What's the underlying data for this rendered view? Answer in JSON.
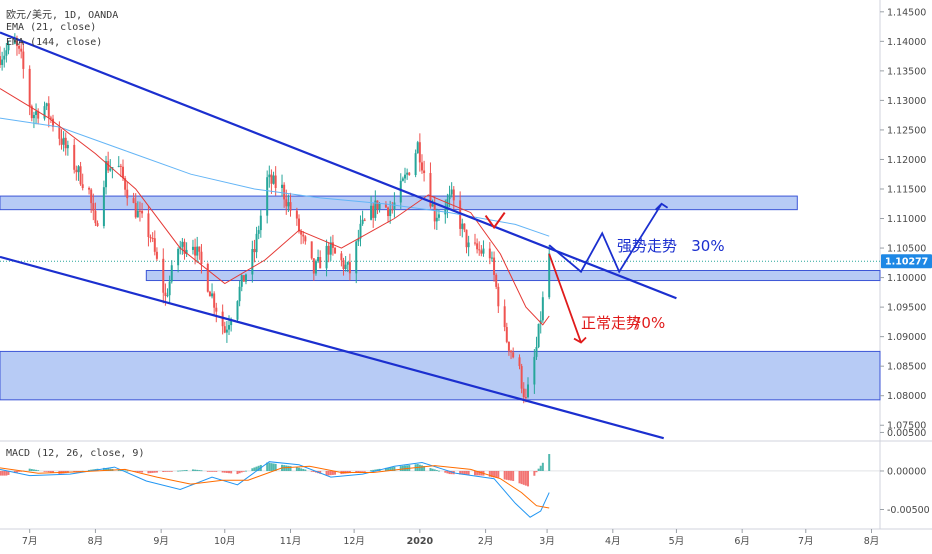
{
  "chart_data": {
    "type": "candlestick",
    "title": "欧元/美元, 1D, OANDA",
    "indicators": [
      "EMA (21, close)",
      "EMA (144, close)"
    ],
    "macd_label": "MACD (12, 26, close, 9)",
    "last_price": "1.10277",
    "colors": {
      "up": "#26a69a",
      "down": "#ef5350",
      "ema21": "#e53935",
      "ema144": "#64b5f6",
      "channel": "#1b2fcf",
      "zone_fill": "#9fbaf2",
      "zone_stroke": "#3c55d6",
      "macd_line": "#2196f3",
      "signal_line": "#ff6d00",
      "price_tag": "#1e88e5"
    },
    "price_axis": {
      "min": 1.0725,
      "max": 1.147,
      "ticks": [
        "1.14500",
        "1.14000",
        "1.13500",
        "1.13000",
        "1.12500",
        "1.12000",
        "1.11500",
        "1.11000",
        "1.10500",
        "1.10000",
        "1.09500",
        "1.09000",
        "1.08500",
        "1.08000",
        "1.07500"
      ]
    },
    "macd_axis": {
      "min": -0.0074,
      "max": 0.0035,
      "ticks": [
        "0.00500",
        "0.00000",
        "-0.00500"
      ]
    },
    "time_axis": {
      "start": "2019-06-17",
      "end": "2020-08-05",
      "ticks": [
        {
          "date": "2019-07-01",
          "label": "7月"
        },
        {
          "date": "2019-08-01",
          "label": "8月"
        },
        {
          "date": "2019-09-01",
          "label": "9月"
        },
        {
          "date": "2019-10-01",
          "label": "10月"
        },
        {
          "date": "2019-11-01",
          "label": "11月"
        },
        {
          "date": "2019-12-01",
          "label": "12月"
        },
        {
          "date": "2020-01-01",
          "label": "2020"
        },
        {
          "date": "2020-02-01",
          "label": "2月"
        },
        {
          "date": "2020-03-01",
          "label": "3月"
        },
        {
          "date": "2020-04-01",
          "label": "4月"
        },
        {
          "date": "2020-05-01",
          "label": "5月"
        },
        {
          "date": "2020-06-01",
          "label": "6月"
        },
        {
          "date": "2020-07-01",
          "label": "7月"
        },
        {
          "date": "2020-08-01",
          "label": "8月"
        }
      ]
    },
    "price_path": [
      [
        "2019-06-17",
        1.1375
      ],
      [
        "2019-06-24",
        1.1395
      ],
      [
        "2019-06-27",
        1.137
      ],
      [
        "2019-07-02",
        1.1275
      ],
      [
        "2019-07-08",
        1.129
      ],
      [
        "2019-07-15",
        1.124
      ],
      [
        "2019-07-22",
        1.119
      ],
      [
        "2019-07-29",
        1.1145
      ],
      [
        "2019-08-01",
        1.108
      ],
      [
        "2019-08-06",
        1.119
      ],
      [
        "2019-08-12",
        1.1185
      ],
      [
        "2019-08-19",
        1.112
      ],
      [
        "2019-08-27",
        1.107
      ],
      [
        "2019-09-03",
        1.0965
      ],
      [
        "2019-09-09",
        1.105
      ],
      [
        "2019-09-16",
        1.106
      ],
      [
        "2019-09-23",
        1.099
      ],
      [
        "2019-10-01",
        1.091
      ],
      [
        "2019-10-08",
        1.098
      ],
      [
        "2019-10-15",
        1.1045
      ],
      [
        "2019-10-21",
        1.1165
      ],
      [
        "2019-10-28",
        1.115
      ],
      [
        "2019-11-05",
        1.108
      ],
      [
        "2019-11-12",
        1.101
      ],
      [
        "2019-11-19",
        1.105
      ],
      [
        "2019-11-29",
        1.101
      ],
      [
        "2019-12-04",
        1.108
      ],
      [
        "2019-12-12",
        1.1125
      ],
      [
        "2019-12-19",
        1.1115
      ],
      [
        "2019-12-27",
        1.1185
      ],
      [
        "2019-12-31",
        1.1225
      ],
      [
        "2020-01-08",
        1.1105
      ],
      [
        "2020-01-16",
        1.1135
      ],
      [
        "2020-01-24",
        1.105
      ],
      [
        "2020-02-03",
        1.104
      ],
      [
        "2020-02-10",
        1.0905
      ],
      [
        "2020-02-17",
        1.084
      ],
      [
        "2020-02-20",
        1.079
      ],
      [
        "2020-02-25",
        1.088
      ],
      [
        "2020-02-28",
        1.096
      ],
      [
        "2020-03-02",
        1.104
      ]
    ],
    "macd_hist": [
      [
        "2019-06-20",
        -0.0006
      ],
      [
        "2019-07-01",
        0.0003
      ],
      [
        "2019-07-15",
        -0.0004
      ],
      [
        "2019-08-05",
        0.0004
      ],
      [
        "2019-08-26",
        -0.0003
      ],
      [
        "2019-09-16",
        0.0002
      ],
      [
        "2019-10-07",
        -0.0004
      ],
      [
        "2019-10-21",
        0.0011
      ],
      [
        "2019-11-04",
        0.0005
      ],
      [
        "2019-11-18",
        -0.0006
      ],
      [
        "2019-12-02",
        -0.0002
      ],
      [
        "2019-12-16",
        0.0004
      ],
      [
        "2019-12-31",
        0.0009
      ],
      [
        "2020-01-15",
        -0.0004
      ],
      [
        "2020-01-31",
        -0.0006
      ],
      [
        "2020-02-14",
        -0.0013
      ],
      [
        "2020-02-21",
        -0.002
      ],
      [
        "2020-02-26",
        0.0003
      ],
      [
        "2020-03-02",
        0.0022
      ]
    ],
    "macd_line": [
      [
        "2019-06-17",
        0.0002
      ],
      [
        "2019-07-01",
        -0.0006
      ],
      [
        "2019-07-20",
        -0.0004
      ],
      [
        "2019-08-10",
        0.0005
      ],
      [
        "2019-08-25",
        -0.0013
      ],
      [
        "2019-09-10",
        -0.0024
      ],
      [
        "2019-09-25",
        -0.0008
      ],
      [
        "2019-10-07",
        -0.0018
      ],
      [
        "2019-10-22",
        0.0012
      ],
      [
        "2019-11-05",
        0.0008
      ],
      [
        "2019-11-20",
        -0.0008
      ],
      [
        "2019-12-05",
        -0.0004
      ],
      [
        "2019-12-20",
        0.0006
      ],
      [
        "2020-01-02",
        0.0011
      ],
      [
        "2020-01-18",
        -0.0003
      ],
      [
        "2020-02-05",
        -0.001
      ],
      [
        "2020-02-15",
        -0.0042
      ],
      [
        "2020-02-22",
        -0.006
      ],
      [
        "2020-02-27",
        -0.0052
      ],
      [
        "2020-03-02",
        -0.0028
      ]
    ],
    "signal_line": [
      [
        "2019-06-17",
        0.0004
      ],
      [
        "2019-07-05",
        -0.0003
      ],
      [
        "2019-07-25",
        -0.0001
      ],
      [
        "2019-08-15",
        0.0002
      ],
      [
        "2019-08-30",
        -0.0008
      ],
      [
        "2019-09-15",
        -0.0017
      ],
      [
        "2019-09-30",
        -0.0012
      ],
      [
        "2019-10-12",
        -0.0012
      ],
      [
        "2019-10-28",
        0.0004
      ],
      [
        "2019-11-10",
        0.0006
      ],
      [
        "2019-11-25",
        -0.0002
      ],
      [
        "2019-12-10",
        -0.0002
      ],
      [
        "2019-12-25",
        0.0003
      ],
      [
        "2020-01-08",
        0.0007
      ],
      [
        "2020-01-25",
        0.0002
      ],
      [
        "2020-02-08",
        -0.001
      ],
      [
        "2020-02-18",
        -0.0028
      ],
      [
        "2020-02-25",
        -0.0045
      ],
      [
        "2020-03-02",
        -0.0048
      ]
    ],
    "ema21": [
      [
        "2019-06-17",
        1.132
      ],
      [
        "2019-07-10",
        1.127
      ],
      [
        "2019-08-01",
        1.121
      ],
      [
        "2019-08-20",
        1.115
      ],
      [
        "2019-09-10",
        1.105
      ],
      [
        "2019-10-01",
        1.099
      ],
      [
        "2019-10-20",
        1.103
      ],
      [
        "2019-11-05",
        1.108
      ],
      [
        "2019-11-25",
        1.105
      ],
      [
        "2019-12-20",
        1.11
      ],
      [
        "2020-01-05",
        1.114
      ],
      [
        "2020-01-25",
        1.111
      ],
      [
        "2020-02-08",
        1.104
      ],
      [
        "2020-02-20",
        1.095
      ],
      [
        "2020-02-28",
        1.092
      ],
      [
        "2020-03-02",
        1.0935
      ]
    ],
    "ema144": [
      [
        "2019-06-17",
        1.127
      ],
      [
        "2019-07-15",
        1.1255
      ],
      [
        "2019-08-15",
        1.1215
      ],
      [
        "2019-09-15",
        1.1175
      ],
      [
        "2019-10-15",
        1.115
      ],
      [
        "2019-11-15",
        1.1135
      ],
      [
        "2019-12-15",
        1.1125
      ],
      [
        "2020-01-15",
        1.111
      ],
      [
        "2020-02-15",
        1.109
      ],
      [
        "2020-03-02",
        1.107
      ]
    ],
    "zones": [
      {
        "from": "2019-06-17",
        "to": "2020-06-27",
        "low": 1.1115,
        "high": 1.1138
      },
      {
        "from": "2019-08-25",
        "to": "2020-08-05",
        "low": 1.0995,
        "high": 1.1012
      },
      {
        "from": "2019-06-17",
        "to": "2020-08-05",
        "low": 1.0793,
        "high": 1.0875
      }
    ],
    "channel_lines": [
      {
        "from": [
          "2019-06-17",
          1.1415
        ],
        "to": [
          "2020-05-01",
          1.0965
        ]
      },
      {
        "from": [
          "2019-06-17",
          1.1035
        ],
        "to": [
          "2020-04-25",
          1.0728
        ]
      }
    ],
    "annotations": [
      {
        "text": "强势走势",
        "date": "2020-04-03",
        "price": 1.1045,
        "color": "#1b2fcf"
      },
      {
        "text": "30%",
        "date": "2020-05-08",
        "price": 1.1045,
        "color": "#1b2fcf"
      },
      {
        "text": "正常走势",
        "date": "2020-03-17",
        "price": 1.0915,
        "color": "#e01b1b"
      },
      {
        "text": "70%",
        "date": "2020-04-10",
        "price": 1.0915,
        "color": "#e01b1b"
      }
    ],
    "blue_path": [
      [
        "2020-03-02",
        1.1055
      ],
      [
        "2020-03-17",
        1.101
      ],
      [
        "2020-03-27",
        1.1075
      ],
      [
        "2020-04-04",
        1.101
      ],
      [
        "2020-04-24",
        1.1125
      ]
    ],
    "red_path": [
      [
        "2020-03-02",
        1.104
      ],
      [
        "2020-03-17",
        1.089
      ]
    ],
    "red_cap": [
      [
        "2020-02-01",
        1.1105
      ],
      [
        "2020-02-05",
        1.1085
      ],
      [
        "2020-02-10",
        1.111
      ]
    ]
  }
}
